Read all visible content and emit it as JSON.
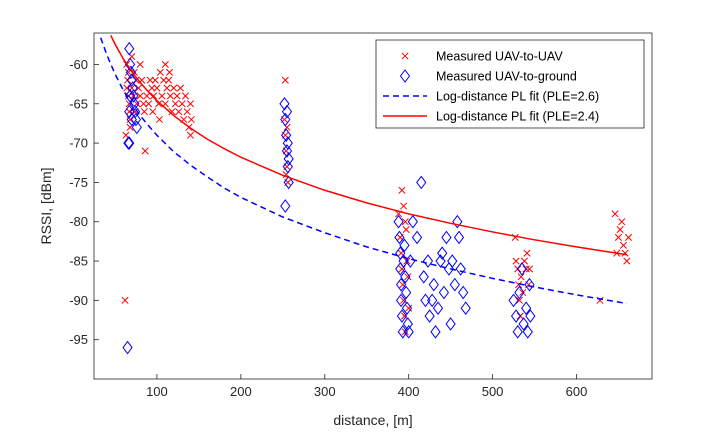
{
  "chart_data": {
    "type": "scatter",
    "title": "",
    "xlabel": "distance, [m]",
    "ylabel": "RSSI, [dBm]",
    "xlim": [
      25,
      690
    ],
    "ylim": [
      -100,
      -56
    ],
    "xticks": [
      100,
      200,
      300,
      400,
      500,
      600
    ],
    "yticks": [
      -95,
      -90,
      -85,
      -80,
      -75,
      -70,
      -65,
      -60
    ],
    "grid": false,
    "legend_placement": "top-right",
    "series": [
      {
        "name": "Measured UAV-to-UAV",
        "marker": "x",
        "color": "#ff0000",
        "points": [
          [
            62,
            -90
          ],
          [
            63,
            -69
          ],
          [
            64,
            -60
          ],
          [
            65,
            -62
          ],
          [
            66,
            -64
          ],
          [
            67,
            -66
          ],
          [
            68,
            -68
          ],
          [
            64,
            -63
          ],
          [
            66,
            -61
          ],
          [
            67,
            -65
          ],
          [
            68,
            -67
          ],
          [
            70,
            -63
          ],
          [
            70,
            -59
          ],
          [
            72,
            -64
          ],
          [
            73,
            -61
          ],
          [
            74,
            -66
          ],
          [
            75,
            -62
          ],
          [
            76,
            -65
          ],
          [
            78,
            -63
          ],
          [
            80,
            -60
          ],
          [
            80,
            -64
          ],
          [
            82,
            -62
          ],
          [
            84,
            -65
          ],
          [
            85,
            -66
          ],
          [
            86,
            -71
          ],
          [
            88,
            -64
          ],
          [
            90,
            -65
          ],
          [
            92,
            -62
          ],
          [
            94,
            -63
          ],
          [
            95,
            -66
          ],
          [
            96,
            -64
          ],
          [
            98,
            -62
          ],
          [
            100,
            -63
          ],
          [
            102,
            -65
          ],
          [
            103,
            -67
          ],
          [
            104,
            -61
          ],
          [
            106,
            -64
          ],
          [
            108,
            -62
          ],
          [
            110,
            -60
          ],
          [
            110,
            -65
          ],
          [
            112,
            -63
          ],
          [
            114,
            -62
          ],
          [
            115,
            -61
          ],
          [
            116,
            -64
          ],
          [
            118,
            -66
          ],
          [
            120,
            -63
          ],
          [
            122,
            -65
          ],
          [
            124,
            -64
          ],
          [
            126,
            -66
          ],
          [
            128,
            -63
          ],
          [
            130,
            -65
          ],
          [
            132,
            -67
          ],
          [
            134,
            -64
          ],
          [
            136,
            -66
          ],
          [
            138,
            -68
          ],
          [
            140,
            -65
          ],
          [
            140,
            -69
          ],
          [
            141,
            -67
          ],
          [
            253,
            -62
          ],
          [
            252,
            -67
          ],
          [
            253,
            -69
          ],
          [
            254,
            -71
          ],
          [
            255,
            -73
          ],
          [
            256,
            -75
          ],
          [
            254,
            -74
          ],
          [
            255,
            -68
          ],
          [
            388,
            -79
          ],
          [
            390,
            -82
          ],
          [
            391,
            -84
          ],
          [
            392,
            -86
          ],
          [
            393,
            -88
          ],
          [
            394,
            -90
          ],
          [
            395,
            -92
          ],
          [
            396,
            -94
          ],
          [
            397,
            -81
          ],
          [
            392,
            -76
          ],
          [
            394,
            -78
          ],
          [
            396,
            -80
          ],
          [
            398,
            -85
          ],
          [
            399,
            -87
          ],
          [
            400,
            -91
          ],
          [
            527,
            -82
          ],
          [
            528,
            -85
          ],
          [
            530,
            -86
          ],
          [
            531,
            -88
          ],
          [
            532,
            -90
          ],
          [
            533,
            -92
          ],
          [
            534,
            -87
          ],
          [
            536,
            -89
          ],
          [
            538,
            -85
          ],
          [
            540,
            -86
          ],
          [
            541,
            -84
          ],
          [
            543,
            -88
          ],
          [
            544,
            -86
          ],
          [
            628,
            -90
          ],
          [
            646,
            -79
          ],
          [
            648,
            -84
          ],
          [
            650,
            -82
          ],
          [
            652,
            -81
          ],
          [
            654,
            -80
          ],
          [
            656,
            -83
          ],
          [
            658,
            -84
          ],
          [
            660,
            -85
          ],
          [
            662,
            -82
          ]
        ]
      },
      {
        "name": "Measured UAV-to-ground",
        "marker": "diamond",
        "color": "#0000ff",
        "points": [
          [
            65,
            -96
          ],
          [
            66,
            -70
          ],
          [
            67,
            -70
          ],
          [
            67,
            -58
          ],
          [
            68,
            -60
          ],
          [
            69,
            -61
          ],
          [
            70,
            -62
          ],
          [
            71,
            -63
          ],
          [
            72,
            -64
          ],
          [
            73,
            -65
          ],
          [
            74,
            -66
          ],
          [
            75,
            -67
          ],
          [
            76,
            -68
          ],
          [
            67,
            -66
          ],
          [
            68,
            -64
          ],
          [
            70,
            -67
          ],
          [
            252,
            -65
          ],
          [
            253,
            -67
          ],
          [
            254,
            -69
          ],
          [
            255,
            -71
          ],
          [
            256,
            -73
          ],
          [
            257,
            -75
          ],
          [
            253,
            -78
          ],
          [
            255,
            -66
          ],
          [
            256,
            -70
          ],
          [
            257,
            -72
          ],
          [
            388,
            -80
          ],
          [
            389,
            -82
          ],
          [
            390,
            -84
          ],
          [
            390,
            -86
          ],
          [
            391,
            -88
          ],
          [
            391,
            -90
          ],
          [
            392,
            -92
          ],
          [
            393,
            -94
          ],
          [
            394,
            -85
          ],
          [
            395,
            -83
          ],
          [
            396,
            -87
          ],
          [
            397,
            -89
          ],
          [
            398,
            -91
          ],
          [
            399,
            -93
          ],
          [
            400,
            -94
          ],
          [
            402,
            -85
          ],
          [
            405,
            -80
          ],
          [
            410,
            -82
          ],
          [
            415,
            -75
          ],
          [
            418,
            -87
          ],
          [
            420,
            -90
          ],
          [
            423,
            -85
          ],
          [
            425,
            -92
          ],
          [
            428,
            -90
          ],
          [
            430,
            -88
          ],
          [
            432,
            -94
          ],
          [
            435,
            -91
          ],
          [
            438,
            -85
          ],
          [
            440,
            -84
          ],
          [
            442,
            -89
          ],
          [
            445,
            -82
          ],
          [
            448,
            -86
          ],
          [
            450,
            -93
          ],
          [
            452,
            -85
          ],
          [
            455,
            -88
          ],
          [
            458,
            -80
          ],
          [
            460,
            -82
          ],
          [
            462,
            -86
          ],
          [
            465,
            -89
          ],
          [
            468,
            -91
          ],
          [
            525,
            -90
          ],
          [
            528,
            -92
          ],
          [
            530,
            -94
          ],
          [
            532,
            -89
          ],
          [
            535,
            -86
          ],
          [
            537,
            -93
          ],
          [
            540,
            -91
          ],
          [
            542,
            -94
          ],
          [
            544,
            -88
          ],
          [
            545,
            -92
          ]
        ]
      },
      {
        "name": "Log-distance PL fit (PLE=2.6)",
        "type": "line",
        "dash": "dashed",
        "color": "#0000ff",
        "x": [
          33,
          40,
          50,
          60,
          70,
          80,
          90,
          100,
          120,
          140,
          160,
          180,
          200,
          250,
          300,
          350,
          400,
          450,
          500,
          550,
          600,
          660
        ],
        "y": [
          -56.6,
          -58.7,
          -61.2,
          -63.3,
          -65.0,
          -66.5,
          -67.8,
          -69.0,
          -71.1,
          -72.8,
          -74.3,
          -75.7,
          -76.9,
          -79.4,
          -81.4,
          -83.2,
          -84.7,
          -86.0,
          -87.2,
          -88.3,
          -89.3,
          -90.4
        ]
      },
      {
        "name": "Log-distance PL fit (PLE=2.4)",
        "type": "line",
        "dash": "solid",
        "color": "#ff0000",
        "x": [
          45,
          50,
          60,
          70,
          80,
          90,
          100,
          120,
          140,
          160,
          180,
          200,
          250,
          300,
          350,
          400,
          450,
          500,
          550,
          600,
          660
        ],
        "y": [
          -56.3,
          -57.4,
          -59.3,
          -60.9,
          -62.3,
          -63.5,
          -64.6,
          -66.5,
          -68.1,
          -69.5,
          -70.7,
          -71.8,
          -74.1,
          -76.0,
          -77.6,
          -79.0,
          -80.2,
          -81.3,
          -82.3,
          -83.2,
          -84.2
        ]
      }
    ]
  }
}
